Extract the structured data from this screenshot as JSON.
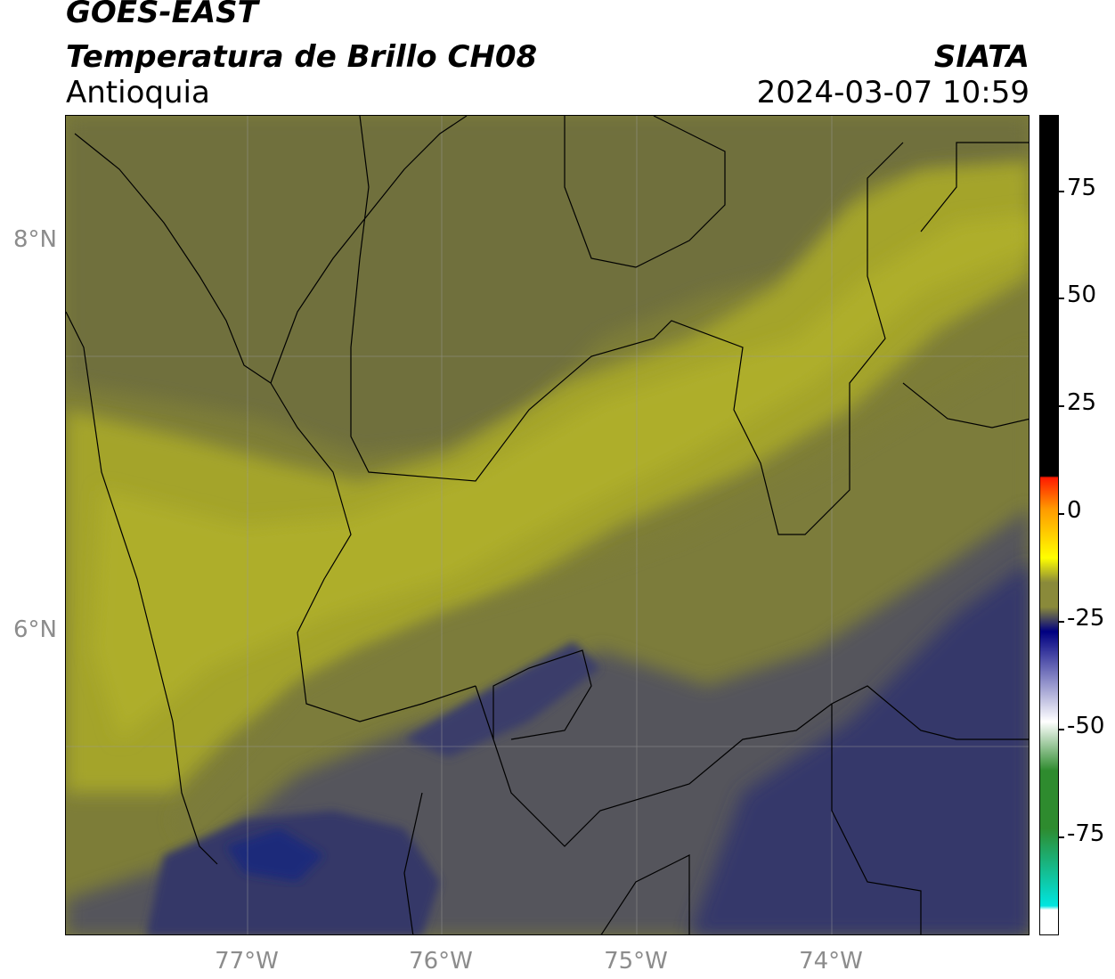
{
  "header": {
    "satellite": "GOES-EAST",
    "product": "Temperatura de Brillo CH08",
    "region": "Antioquia",
    "agency": "SIATA",
    "datetime": "2024-03-07 10:59"
  },
  "map": {
    "lat_labels": [
      "8°N",
      "6°N"
    ],
    "lon_labels": [
      "77°W",
      "76°W",
      "75°W",
      "74°W"
    ],
    "colors": {
      "olive": "#7d7d38",
      "olive_dark": "#6b6b43",
      "olive_bright": "#a6a62a",
      "yellow_olive": "#9a9a2e",
      "slate": "#4f4f5a",
      "navy": "#2d3266",
      "deep_navy": "#1f2a7a"
    }
  },
  "colorbar": {
    "ticks": [
      "75",
      "50",
      "25",
      "0",
      "-25",
      "-50",
      "-75"
    ],
    "colors": {
      "black": "#000000",
      "red": "#ff1a00",
      "orange": "#ff9900",
      "yellow": "#ffff00",
      "olive": "#8a8a3a",
      "navy": "#000080",
      "white": "#ffffff",
      "green": "#2e8b2e",
      "cyan": "#00e5e0"
    }
  }
}
